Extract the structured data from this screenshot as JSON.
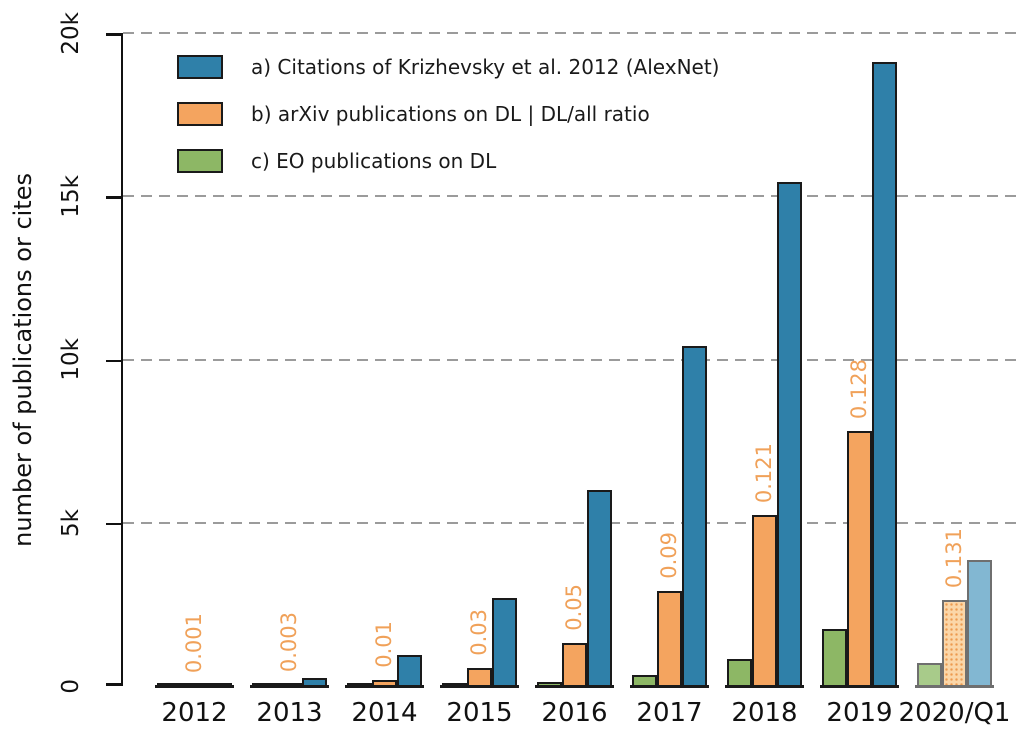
{
  "chart_data": {
    "type": "bar",
    "categories": [
      "2012",
      "2013",
      "2014",
      "2015",
      "2016",
      "2017",
      "2018",
      "2019",
      "2020/Q1"
    ],
    "series": [
      {
        "id": "a",
        "name": "a) Citations of Krizhevsky et al. 2012 (AlexNet)",
        "color": "#2f80a9",
        "faded_color": "#82b7d2",
        "values": [
          60,
          250,
          950,
          2700,
          6000,
          10400,
          15450,
          19100,
          3870
        ]
      },
      {
        "id": "b",
        "name": "b) arXiv publications on DL | DL/all ratio",
        "color": "#f4a45f",
        "faded_color": "#fbd6a8",
        "values": [
          25,
          60,
          170,
          560,
          1320,
          2900,
          5250,
          7800,
          2640
        ]
      },
      {
        "id": "c",
        "name": "c) EO publications on DL",
        "color": "#8db765",
        "faded_color": "#a8cb8a",
        "values": [
          0,
          5,
          15,
          40,
          110,
          350,
          840,
          1750,
          700
        ]
      }
    ],
    "bar_order_left_to_right": [
      "c",
      "b",
      "a"
    ],
    "ratio_labels": [
      "0.001",
      "0.003",
      "0.01",
      "0.03",
      "0.05",
      "0.09",
      "0.121",
      "0.128",
      "0.131"
    ],
    "ratio_label_color": "#f0a159",
    "title": "",
    "xlabel": "",
    "ylabel": "number of publications or cites",
    "ylim": [
      0,
      20000
    ],
    "ytick_values": [
      0,
      5000,
      10000,
      15000,
      20000
    ],
    "ytick_labels": [
      "0",
      "5k",
      "10k",
      "15k",
      "20k"
    ],
    "grid": "dashed horizontal gridlines at 5k,10k,15k,20k",
    "legend_position": "upper-left",
    "last_group_style": "faded colors, gray outline, dotted fill on arXiv bar (preliminary 2020/Q1 data)"
  }
}
